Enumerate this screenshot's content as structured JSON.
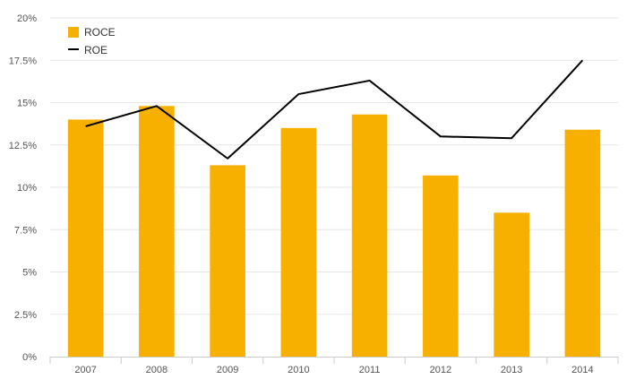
{
  "chart_data": {
    "type": "bar",
    "title": "",
    "xlabel": "",
    "ylabel": "",
    "categories": [
      "2007",
      "2008",
      "2009",
      "2010",
      "2011",
      "2012",
      "2013",
      "2014"
    ],
    "series": [
      {
        "name": "ROCE",
        "type": "bar",
        "color": "#f8b000",
        "values": [
          14.0,
          14.8,
          11.3,
          13.5,
          14.3,
          10.7,
          8.5,
          13.4
        ]
      },
      {
        "name": "ROE",
        "type": "line",
        "color": "#000000",
        "values": [
          13.6,
          14.8,
          11.7,
          15.5,
          16.3,
          13.0,
          12.9,
          17.5
        ]
      }
    ],
    "ylim": [
      0,
      20
    ],
    "yticks": [
      "0%",
      "2.5%",
      "5%",
      "7.5%",
      "10%",
      "12.5%",
      "15%",
      "17.5%",
      "20%"
    ],
    "grid": true,
    "legend_position": "top-left"
  }
}
